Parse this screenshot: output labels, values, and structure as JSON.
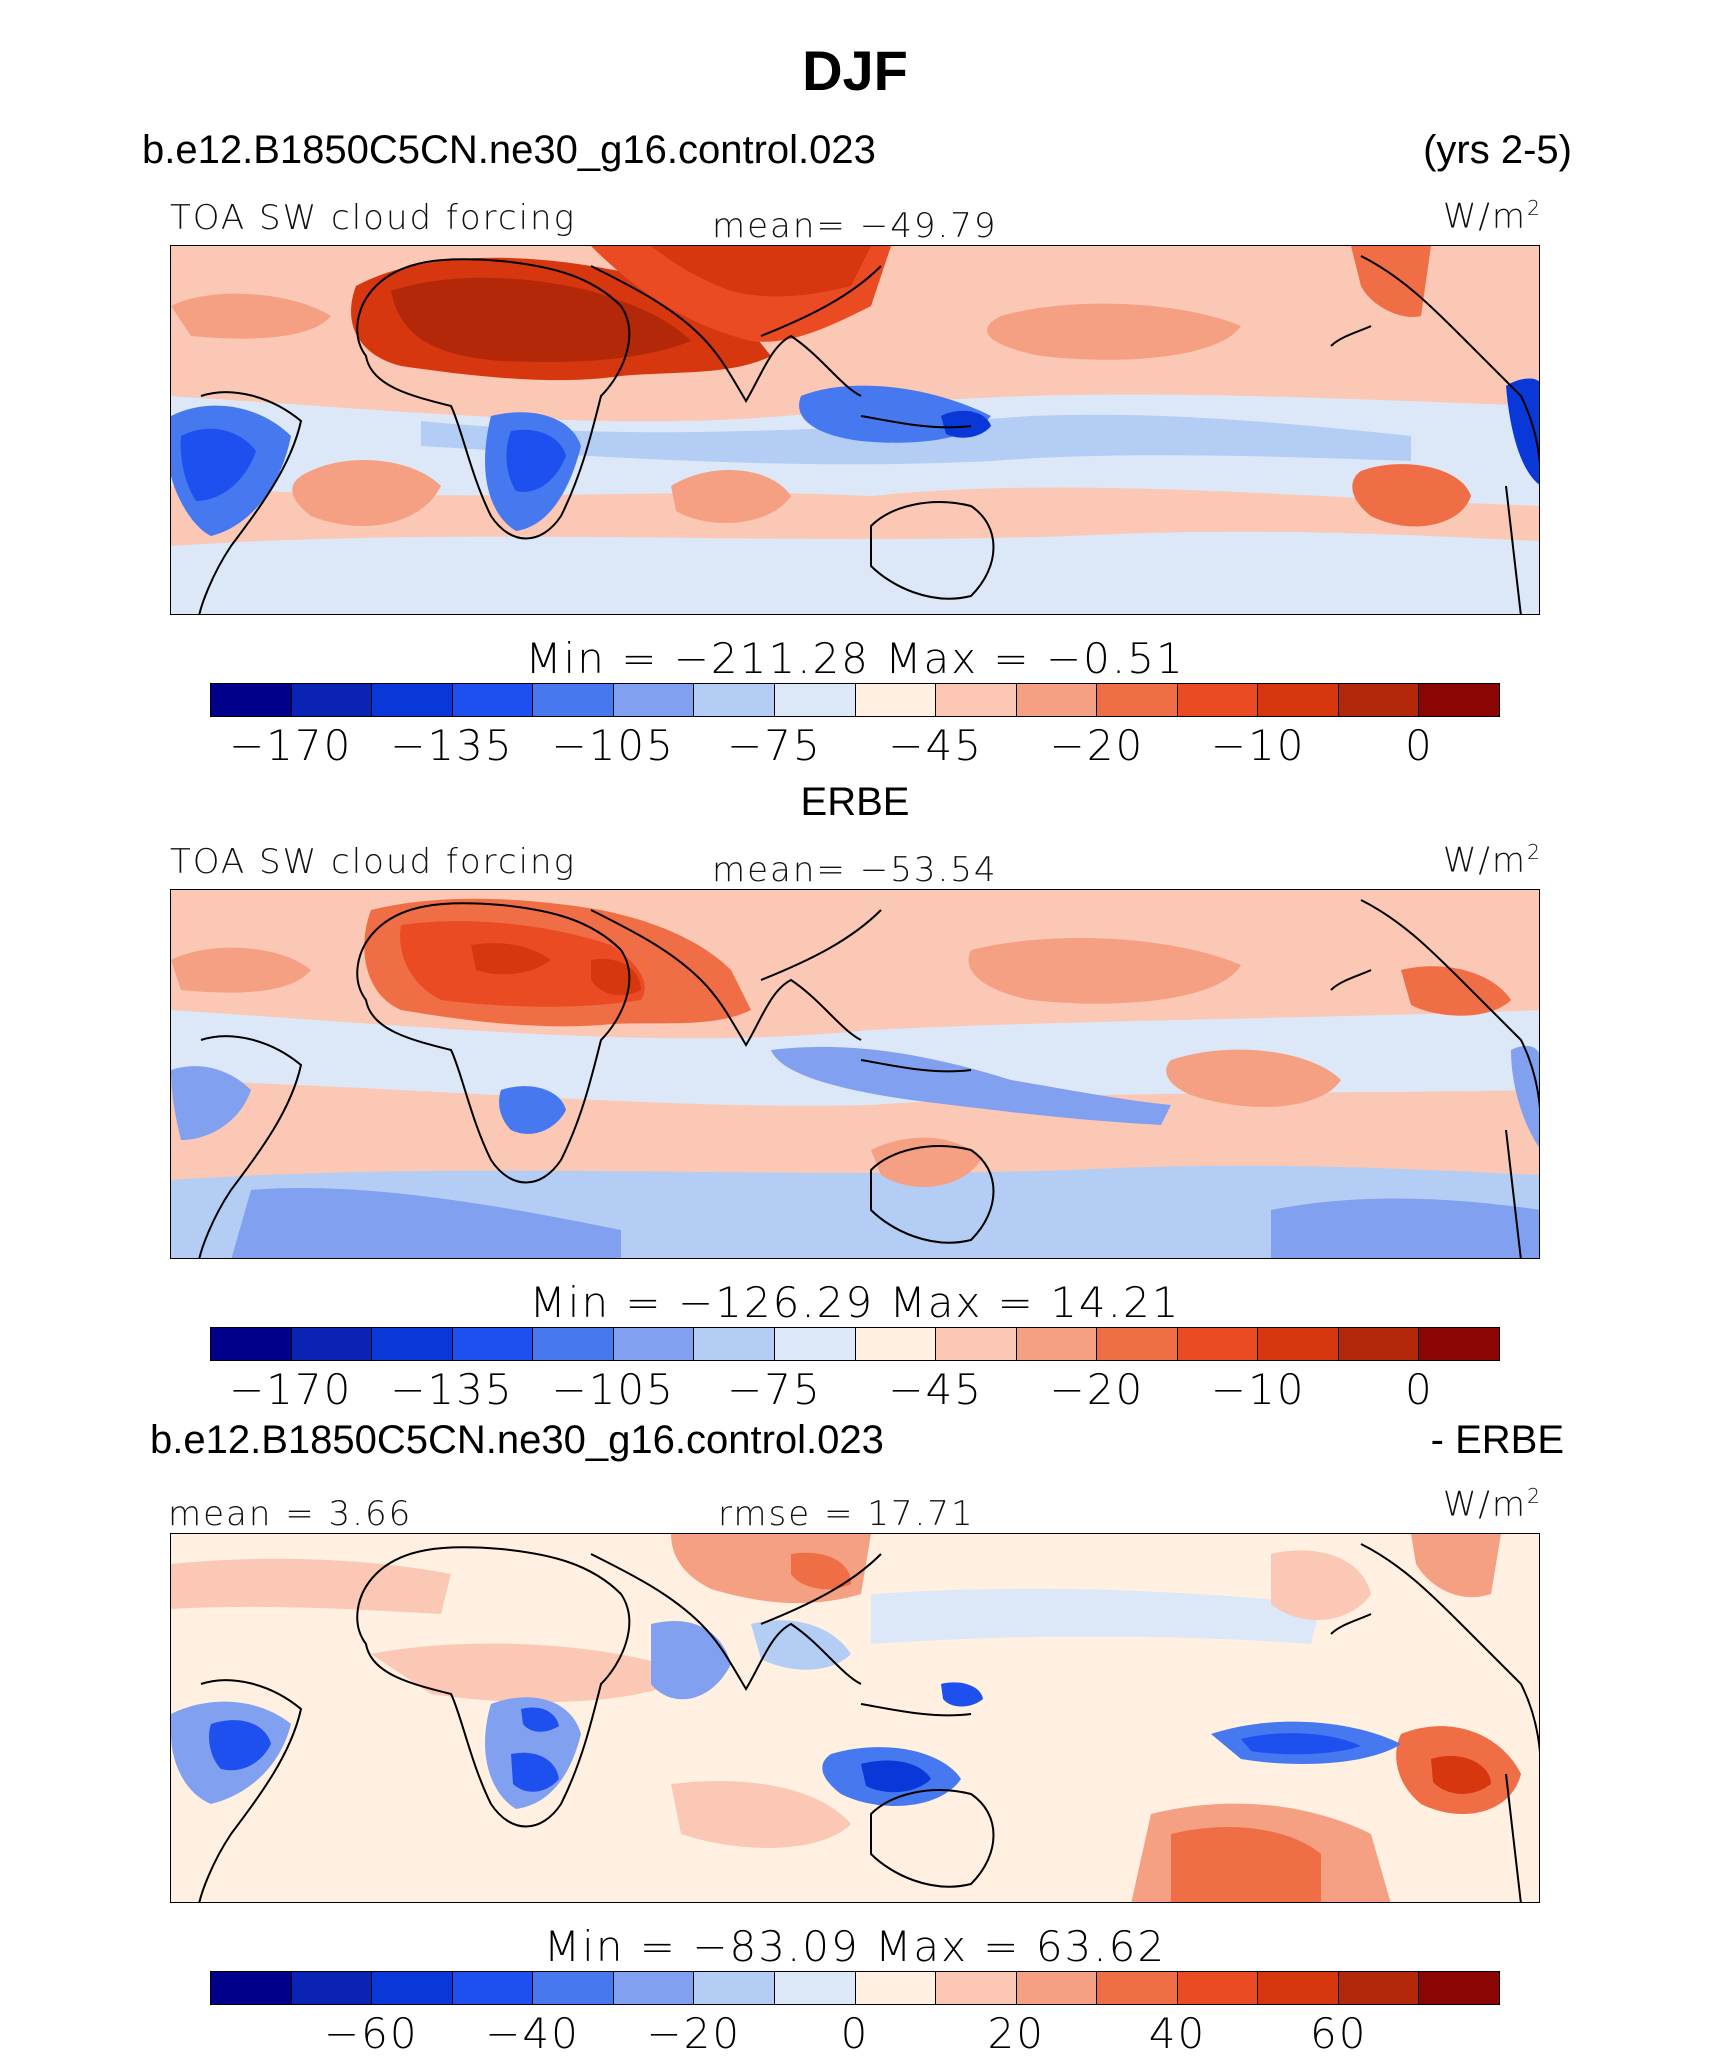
{
  "page_title": "DJF",
  "panels": [
    {
      "case": "b.e12.B1850C5CN.ne30_g16.control.023",
      "right_label": "(yrs 2-5)",
      "variable": "TOA SW cloud forcing",
      "stat": "mean=  −49.79",
      "units": "W/m",
      "units_sup": "2",
      "minmax": "Min  =  −211.28  Max  =   −0.51",
      "colorbar": {
        "colors": [
          "#00008b",
          "#0a23b4",
          "#0a38d8",
          "#1e50f0",
          "#4678f0",
          "#82a0f0",
          "#b4cdf5",
          "#dce8f8",
          "#fff0e1",
          "#fac8b4",
          "#f5a082",
          "#f06e46",
          "#eb4b23",
          "#d7370f",
          "#b4280a",
          "#8c0505"
        ],
        "ticks": [
          "−170",
          "−135",
          "−105",
          "−75",
          "−45",
          "−20",
          "−10",
          "0"
        ]
      }
    },
    {
      "case": "ERBE",
      "variable": "TOA SW cloud forcing",
      "stat": "mean=  −53.54",
      "units": "W/m",
      "units_sup": "2",
      "minmax": "Min  =  −126.29  Max  =   14.21",
      "colorbar": {
        "colors": [
          "#00008b",
          "#0a23b4",
          "#0a38d8",
          "#1e50f0",
          "#4678f0",
          "#82a0f0",
          "#b4cdf5",
          "#dce8f8",
          "#fff0e1",
          "#fac8b4",
          "#f5a082",
          "#f06e46",
          "#eb4b23",
          "#d7370f",
          "#b4280a",
          "#8c0505"
        ],
        "ticks": [
          "−170",
          "−135",
          "−105",
          "−75",
          "−45",
          "−20",
          "−10",
          "0"
        ]
      }
    },
    {
      "case": "b.e12.B1850C5CN.ne30_g16.control.023",
      "right_label": "- ERBE",
      "mean_label": "mean  =    3.66",
      "stat": "rmse  =   17.71",
      "units": "W/m",
      "units_sup": "2",
      "minmax": "Min  =  −83.09  Max  =   63.62",
      "colorbar": {
        "colors": [
          "#00008b",
          "#0a23b4",
          "#0a38d8",
          "#1e50f0",
          "#4678f0",
          "#82a0f0",
          "#b4cdf5",
          "#dce8f8",
          "#fff0e1",
          "#fac8b4",
          "#f5a082",
          "#f06e46",
          "#eb4b23",
          "#d7370f",
          "#b4280a",
          "#8c0505"
        ],
        "ticks": [
          "−60",
          "−40",
          "−20",
          "0",
          "20",
          "40",
          "60"
        ]
      }
    }
  ]
}
